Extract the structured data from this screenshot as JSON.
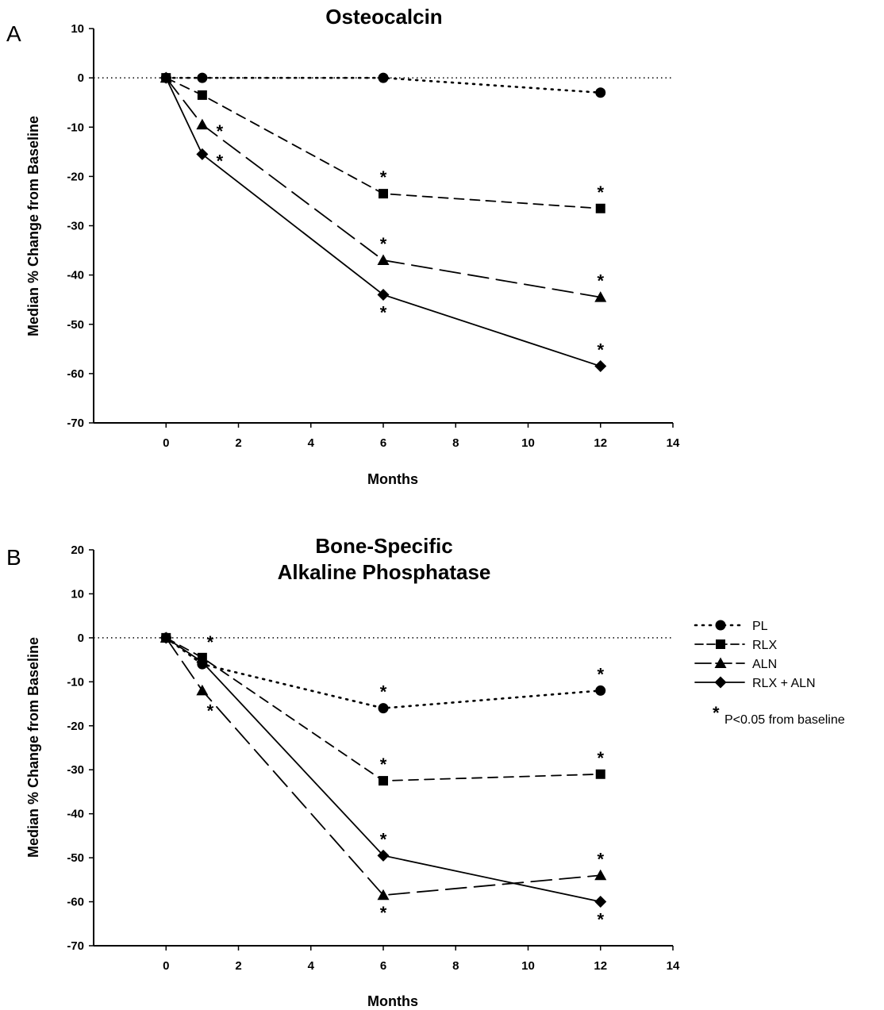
{
  "chart_data": [
    {
      "panel": "A",
      "type": "line",
      "title": "Osteocalcin",
      "xlabel": "Months",
      "ylabel": "Median % Change from Baseline",
      "xlim": [
        -2,
        14
      ],
      "ylim": [
        -70,
        10
      ],
      "x_ticks": [
        0,
        2,
        4,
        6,
        8,
        10,
        12,
        14
      ],
      "y_ticks": [
        10,
        0,
        -10,
        -20,
        -30,
        -40,
        -50,
        -60,
        -70
      ],
      "reference_line_y": 0,
      "series": [
        {
          "name": "PL",
          "marker": "circle",
          "dash": "dotted",
          "x": [
            0,
            1,
            6,
            12
          ],
          "y": [
            0,
            0,
            0,
            -3
          ],
          "star_above": [],
          "star_below": [],
          "star_right": []
        },
        {
          "name": "RLX",
          "marker": "square",
          "dash": "short-dash",
          "x": [
            0,
            1,
            6,
            12
          ],
          "y": [
            0,
            -3.5,
            -23.5,
            -26.5
          ],
          "star_above": [
            6,
            12
          ],
          "star_below": [],
          "star_right": []
        },
        {
          "name": "ALN",
          "marker": "triangle",
          "dash": "long-dash",
          "x": [
            0,
            1,
            6,
            12
          ],
          "y": [
            0,
            -9.5,
            -37,
            -44.5
          ],
          "star_above": [
            6,
            12
          ],
          "star_below": [],
          "star_right": [
            1
          ]
        },
        {
          "name": "RLX + ALN",
          "marker": "diamond",
          "dash": "solid",
          "x": [
            0,
            1,
            6,
            12
          ],
          "y": [
            0,
            -15.5,
            -44,
            -58.5
          ],
          "star_above": [
            12
          ],
          "star_below": [
            6
          ],
          "star_right": [
            1
          ]
        }
      ]
    },
    {
      "panel": "B",
      "type": "line",
      "title": [
        "Bone-Specific",
        "Alkaline Phosphatase"
      ],
      "xlabel": "Months",
      "ylabel": "Median % Change from Baseline",
      "xlim": [
        -2,
        14
      ],
      "ylim": [
        -70,
        20
      ],
      "x_ticks": [
        0,
        2,
        4,
        6,
        8,
        10,
        12,
        14
      ],
      "y_ticks": [
        20,
        10,
        0,
        -10,
        -20,
        -30,
        -40,
        -50,
        -60,
        -70
      ],
      "reference_line_y": 0,
      "series": [
        {
          "name": "PL",
          "marker": "circle",
          "dash": "dotted",
          "x": [
            0,
            1,
            6,
            12
          ],
          "y": [
            0,
            -6,
            -16,
            -12
          ],
          "star_above": [
            6,
            12
          ],
          "star_below": [],
          "star_right": []
        },
        {
          "name": "RLX",
          "marker": "square",
          "dash": "short-dash",
          "x": [
            0,
            1,
            6,
            12
          ],
          "y": [
            0,
            -4.5,
            -32.5,
            -31
          ],
          "star_above": [
            6,
            12
          ],
          "star_below": [],
          "star_right": []
        },
        {
          "name": "ALN",
          "marker": "triangle",
          "dash": "long-dash",
          "x": [
            0,
            1,
            6,
            12
          ],
          "y": [
            0,
            -12,
            -58.5,
            -54
          ],
          "star_above": [
            12
          ],
          "star_below": [
            6
          ],
          "star_right": []
        },
        {
          "name": "RLX + ALN",
          "marker": "diamond",
          "dash": "solid",
          "x": [
            0,
            1,
            6,
            12
          ],
          "y": [
            0,
            -5.5,
            -49.5,
            -60
          ],
          "star_above": [
            6
          ],
          "star_below": [
            12
          ],
          "star_right": []
        }
      ],
      "extra_stars": [
        {
          "x": 1,
          "y": -4.5,
          "position": "above-right"
        },
        {
          "x": 1,
          "y": -12,
          "position": "below-right"
        }
      ]
    }
  ],
  "legend": {
    "items": [
      {
        "label": "PL",
        "marker": "circle",
        "dash": "dotted"
      },
      {
        "label": "RLX",
        "marker": "square",
        "dash": "short-dash"
      },
      {
        "label": "ALN",
        "marker": "triangle",
        "dash": "long-dash"
      },
      {
        "label": "RLX + ALN",
        "marker": "diamond",
        "dash": "solid"
      }
    ],
    "note_symbol": "*",
    "note": "P<0.05 from baseline"
  },
  "colors": {
    "ink": "#000000",
    "background": "#ffffff"
  }
}
